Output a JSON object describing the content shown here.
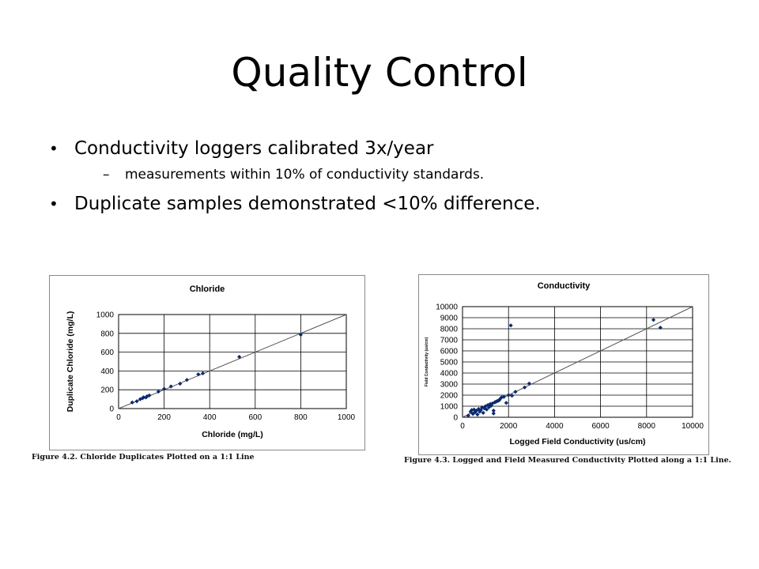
{
  "slide": {
    "title": "Quality Control",
    "bullets": [
      {
        "text": "Conductivity loggers calibrated 3x/year",
        "sub": [
          "measurements within 10% of conductivity standards."
        ]
      },
      {
        "text": "Duplicate samples demonstrated <10% difference.",
        "sub": []
      }
    ],
    "bullet_glyph": "•",
    "sub_glyph": "–"
  },
  "colors": {
    "marker": "#0b2a6e",
    "reference_line": "#555555",
    "frame": "#8a8a8a"
  },
  "chart_data": [
    {
      "type": "scatter",
      "title": "Chloride",
      "xlabel": "Chloride (mg/L)",
      "ylabel": "Duplicate Chloride (mg/L)",
      "xlim": [
        0,
        1000
      ],
      "ylim": [
        0,
        1000
      ],
      "xticks": [
        0,
        200,
        400,
        600,
        800,
        1000
      ],
      "yticks": [
        0,
        200,
        400,
        600,
        800,
        1000
      ],
      "grid": true,
      "reference_line": "1:1",
      "caption": "Figure 4.2.  Chloride Duplicates Plotted on a 1:1 Line",
      "points": [
        [
          60,
          65
        ],
        [
          80,
          78
        ],
        [
          95,
          100
        ],
        [
          105,
          110
        ],
        [
          110,
          120
        ],
        [
          120,
          118
        ],
        [
          125,
          130
        ],
        [
          135,
          140
        ],
        [
          175,
          180
        ],
        [
          200,
          210
        ],
        [
          230,
          235
        ],
        [
          270,
          265
        ],
        [
          300,
          305
        ],
        [
          350,
          365
        ],
        [
          370,
          375
        ],
        [
          530,
          550
        ],
        [
          800,
          785
        ]
      ]
    },
    {
      "type": "scatter",
      "title": "Conductivity",
      "xlabel": "Logged Field Conductivity (us/cm)",
      "ylabel": "Field Conductivity (us/cm)",
      "xlim": [
        0,
        10000
      ],
      "ylim": [
        0,
        10000
      ],
      "xticks": [
        0,
        2000,
        4000,
        6000,
        8000,
        10000
      ],
      "yticks": [
        0,
        1000,
        2000,
        3000,
        4000,
        5000,
        6000,
        7000,
        8000,
        9000,
        10000
      ],
      "grid": true,
      "reference_line": "1:1",
      "caption": "Figure 4.3.  Logged and Field Measured Conductivity Plotted along a 1:1 Line.",
      "points": [
        [
          250,
          150
        ],
        [
          350,
          500
        ],
        [
          400,
          650
        ],
        [
          450,
          300
        ],
        [
          500,
          700
        ],
        [
          550,
          450
        ],
        [
          600,
          600
        ],
        [
          650,
          250
        ],
        [
          700,
          750
        ],
        [
          750,
          500
        ],
        [
          800,
          650
        ],
        [
          850,
          900
        ],
        [
          900,
          400
        ],
        [
          950,
          800
        ],
        [
          1000,
          1000
        ],
        [
          1050,
          700
        ],
        [
          1100,
          1100
        ],
        [
          1150,
          900
        ],
        [
          1200,
          1200
        ],
        [
          1250,
          1050
        ],
        [
          1300,
          1250
        ],
        [
          1350,
          600
        ],
        [
          1400,
          1350
        ],
        [
          1350,
          350
        ],
        [
          1450,
          1400
        ],
        [
          1500,
          1450
        ],
        [
          1550,
          1500
        ],
        [
          1600,
          1550
        ],
        [
          1650,
          1700
        ],
        [
          1700,
          1800
        ],
        [
          1800,
          1850
        ],
        [
          1900,
          1300
        ],
        [
          2000,
          2000
        ],
        [
          2100,
          8300
        ],
        [
          2150,
          1950
        ],
        [
          2300,
          2300
        ],
        [
          2700,
          2700
        ],
        [
          2900,
          3050
        ],
        [
          8300,
          8800
        ],
        [
          8600,
          8100
        ]
      ]
    }
  ]
}
